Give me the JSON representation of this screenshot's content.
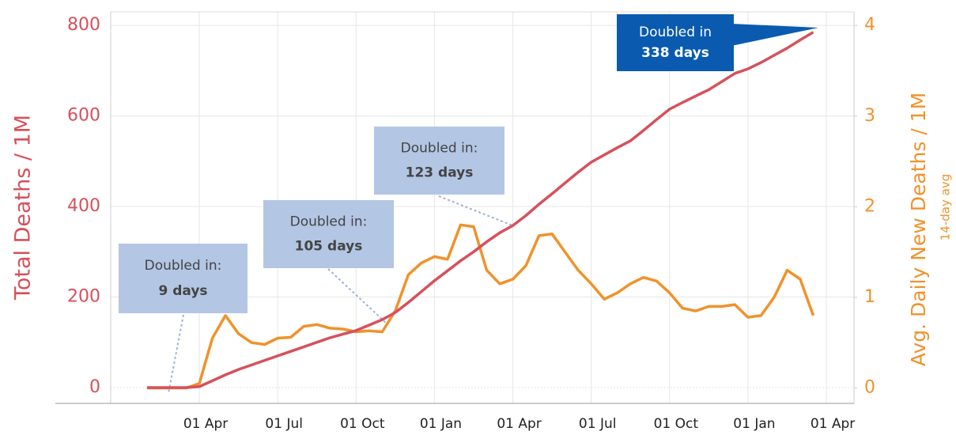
{
  "chart_data": {
    "type": "line",
    "ylabel": "Total Deaths / 1M",
    "y2label": "Avg. Daily New Deaths / 1M",
    "y2sublabel": "14-day avg",
    "categories": [
      null,
      null,
      null,
      null,
      "01 Apr",
      null,
      null,
      null,
      null,
      null,
      "01 Jul",
      null,
      null,
      null,
      null,
      null,
      "01 Oct",
      null,
      null,
      null,
      null,
      null,
      "01 Jan",
      null,
      null,
      null,
      null,
      null,
      "01 Apr",
      null,
      null,
      null,
      null,
      null,
      "01 Jul",
      null,
      null,
      null,
      null,
      null,
      "01 Oct",
      null,
      null,
      null,
      null,
      null,
      "01 Jan",
      null,
      null,
      null,
      null,
      null,
      "01 Apr"
    ],
    "series": [
      {
        "name": "Total Deaths / 1M",
        "color": "#d6515a",
        "axis": "y",
        "values": [
          0,
          0,
          0,
          0,
          2,
          15,
          28,
          40,
          50,
          60,
          70,
          80,
          90,
          100,
          110,
          118,
          126,
          138,
          150,
          166,
          188,
          212,
          236,
          258,
          280,
          300,
          322,
          342,
          358,
          380,
          405,
          428,
          452,
          476,
          498,
          514,
          530,
          545,
          568,
          592,
          615,
          630,
          644,
          658,
          676,
          694,
          704,
          718,
          734,
          750,
          768,
          785,
          null
        ]
      },
      {
        "name": "Avg. Daily New Deaths / 1M",
        "color": "#f0922b",
        "axis": "y2",
        "values": [
          0,
          0,
          0,
          0,
          0.05,
          0.55,
          0.8,
          0.6,
          0.5,
          0.48,
          0.55,
          0.56,
          0.68,
          0.7,
          0.66,
          0.65,
          0.62,
          0.63,
          0.62,
          0.85,
          1.25,
          1.38,
          1.45,
          1.42,
          1.8,
          1.78,
          1.3,
          1.15,
          1.2,
          1.35,
          1.68,
          1.7,
          1.5,
          1.3,
          1.15,
          0.98,
          1.05,
          1.15,
          1.22,
          1.18,
          1.05,
          0.88,
          0.85,
          0.9,
          0.9,
          0.92,
          0.78,
          0.8,
          1.0,
          1.3,
          1.2,
          0.8,
          null
        ]
      }
    ],
    "ylim": [
      -35,
      830
    ],
    "yticks": [
      0,
      200,
      400,
      600,
      800
    ],
    "y2lim": [
      -0.17,
      4.15
    ],
    "y2ticks": [
      0,
      1,
      2,
      3,
      4
    ],
    "grid": true,
    "annotations": [
      {
        "text": "Doubled in:",
        "bold": "9 days"
      },
      {
        "text": "Doubled in:",
        "bold": "105 days"
      },
      {
        "text": "Doubled in:",
        "bold": "123 days"
      },
      {
        "text": "Doubled in",
        "bold": "338 days"
      }
    ]
  }
}
